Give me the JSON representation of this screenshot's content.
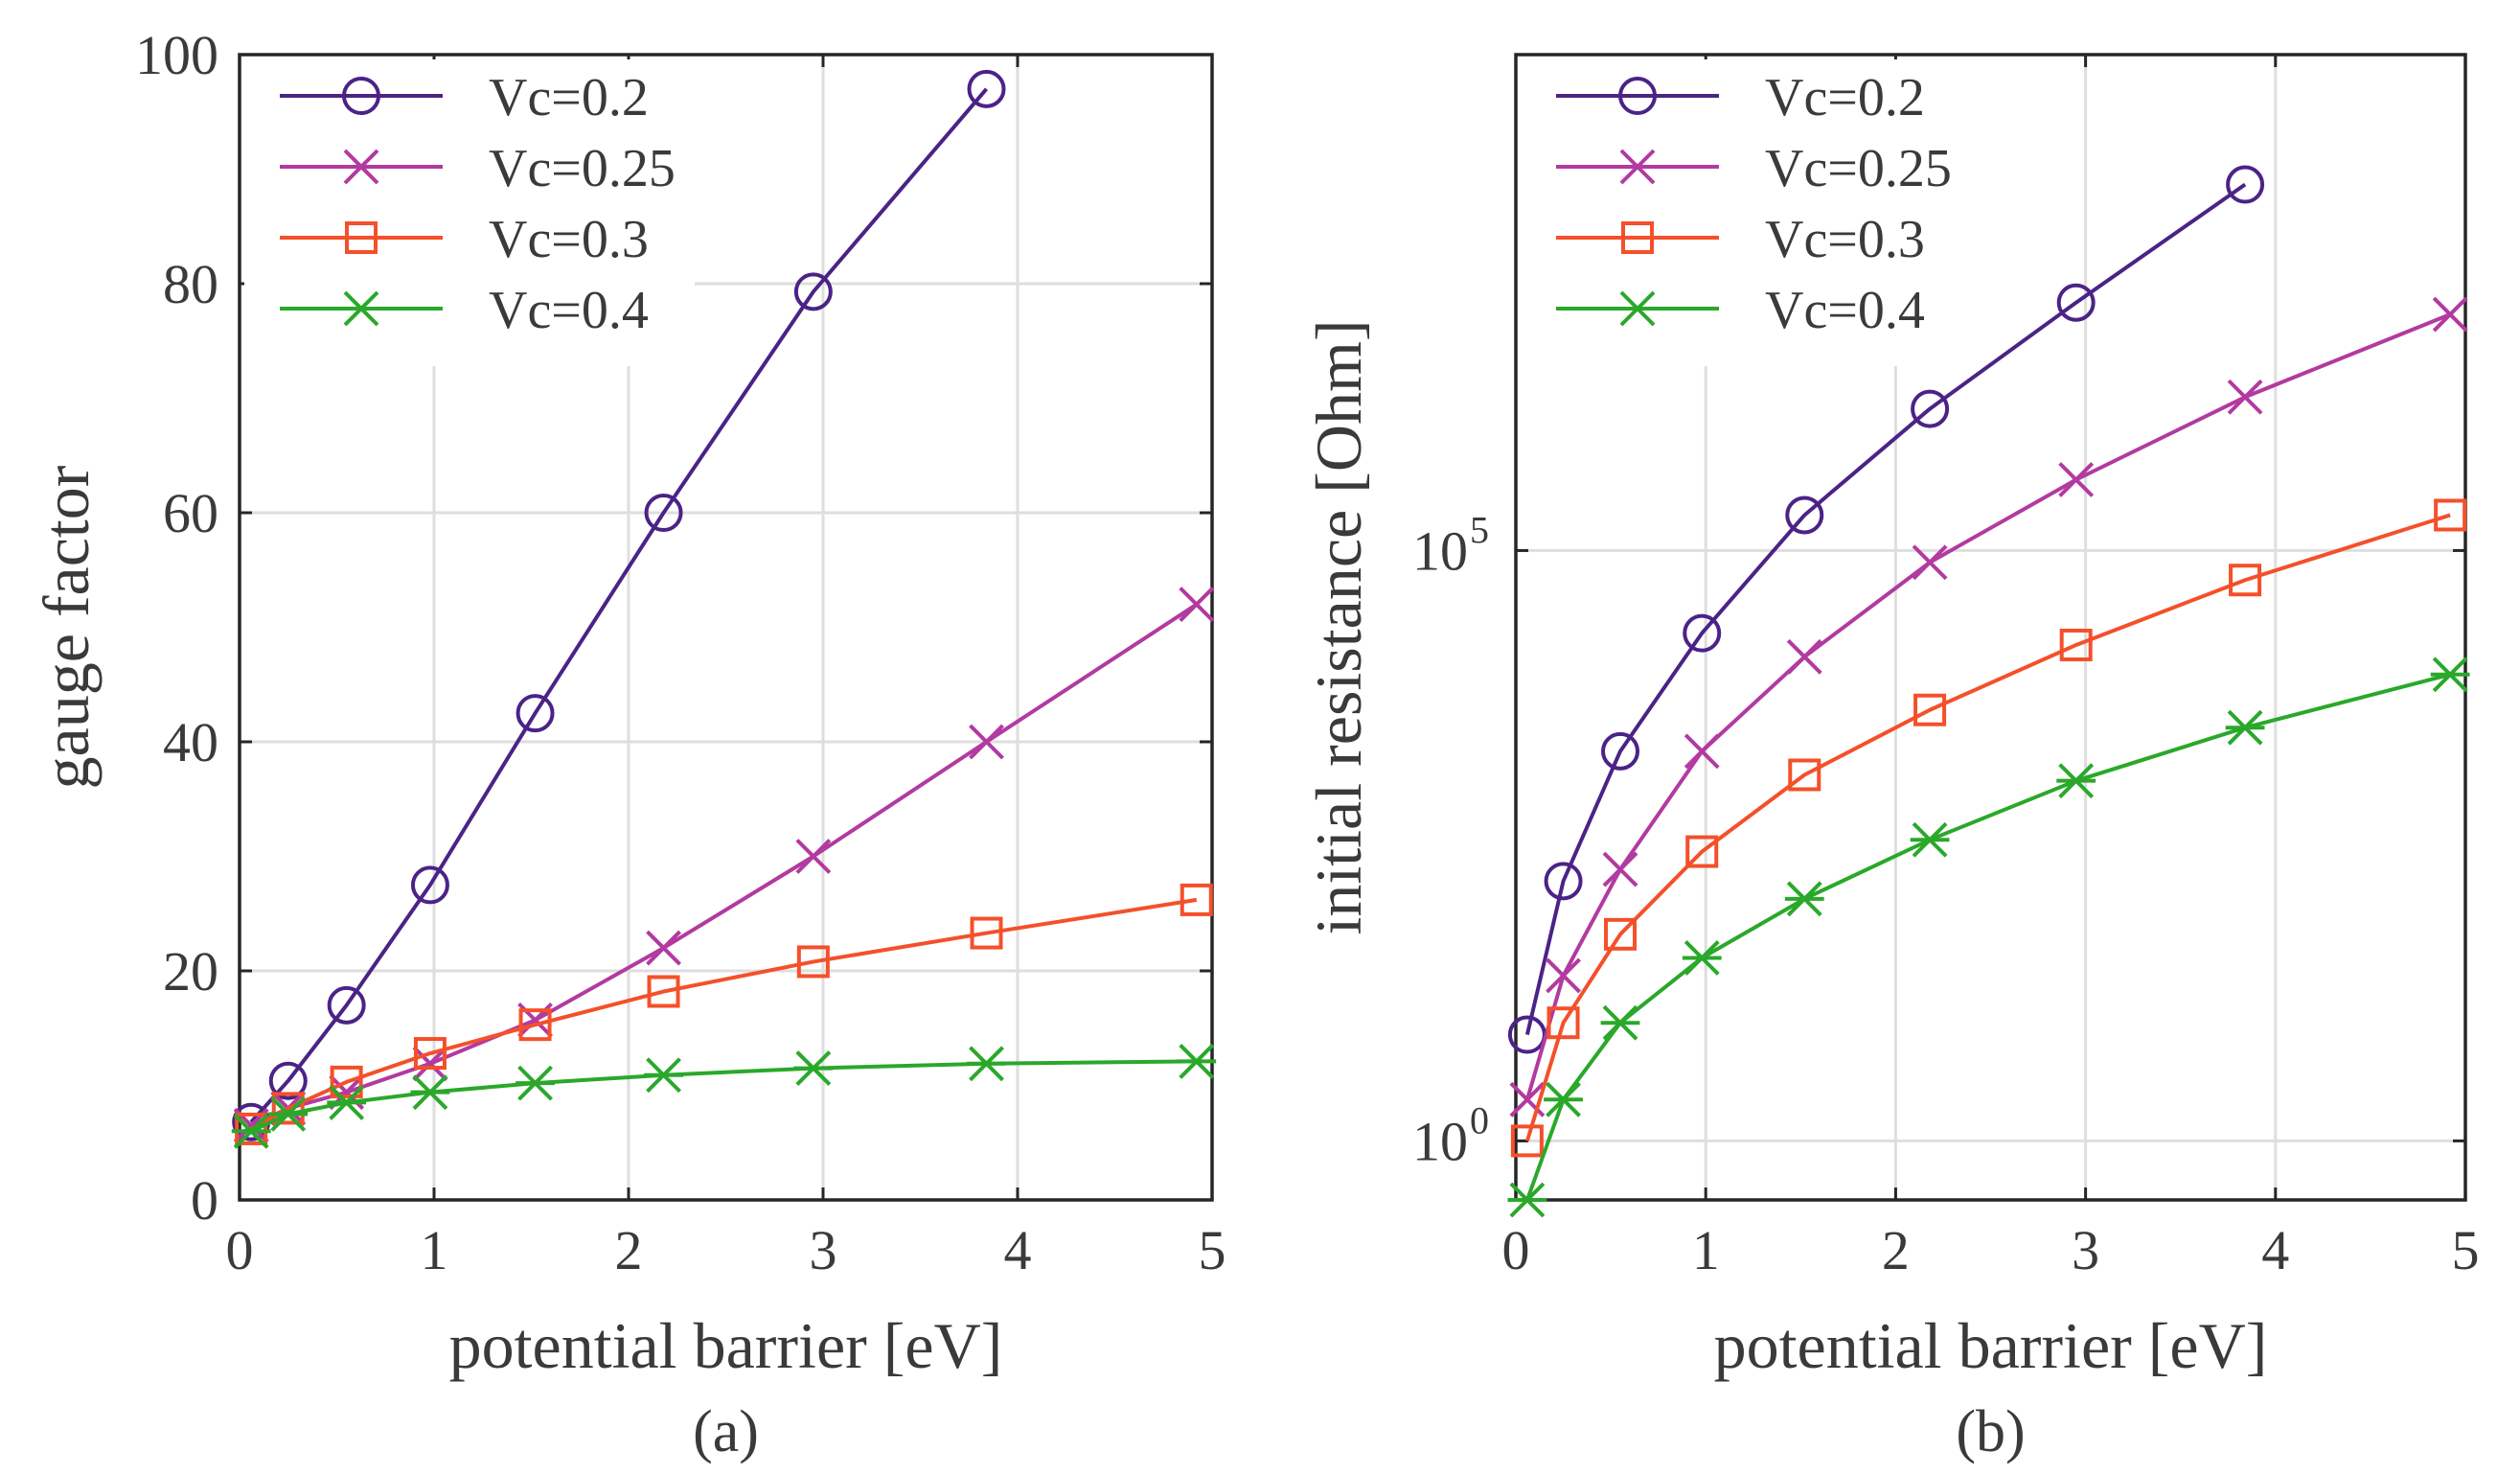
{
  "chart_data": [
    {
      "type": "line",
      "panel_label": "(a)",
      "xlabel": "potential barrier [eV]",
      "ylabel": "gauge factor",
      "xlim": [
        0,
        5
      ],
      "ylim": [
        0,
        100
      ],
      "yscale": "linear",
      "grid": true,
      "legend_position": "top-left",
      "x_ticks": [
        {
          "value": 0,
          "label": "0"
        },
        {
          "value": 1,
          "label": "1"
        },
        {
          "value": 2,
          "label": "2"
        },
        {
          "value": 3,
          "label": "3"
        },
        {
          "value": 4,
          "label": "4"
        },
        {
          "value": 5,
          "label": "5"
        }
      ],
      "y_ticks": [
        {
          "value": 0,
          "label": "0"
        },
        {
          "value": 20,
          "label": "20"
        },
        {
          "value": 40,
          "label": "40"
        },
        {
          "value": 60,
          "label": "60"
        },
        {
          "value": 80,
          "label": "80"
        },
        {
          "value": 100,
          "label": "100"
        }
      ],
      "series": [
        {
          "name": "Vc=0.2",
          "marker": "circle",
          "color": "#4b2387",
          "x": [
            0.06,
            0.25,
            0.55,
            0.98,
            1.52,
            2.18,
            2.95,
            3.84
          ],
          "y": [
            6.8,
            10.4,
            17.0,
            27.5,
            42.5,
            60.0,
            79.3,
            97.0
          ]
        },
        {
          "name": "Vc=0.25",
          "marker": "x",
          "color": "#b23aa0",
          "x": [
            0.06,
            0.25,
            0.55,
            0.98,
            1.52,
            2.18,
            2.95,
            3.84,
            4.92
          ],
          "y": [
            6.5,
            8.0,
            9.4,
            11.9,
            15.7,
            22.0,
            30.0,
            40.0,
            52.0
          ]
        },
        {
          "name": "Vc=0.3",
          "marker": "square",
          "color": "#f4502a",
          "x": [
            0.06,
            0.25,
            0.55,
            0.98,
            1.52,
            2.18,
            2.95,
            3.84,
            4.92
          ],
          "y": [
            6.2,
            8.0,
            10.3,
            12.8,
            15.3,
            18.2,
            20.8,
            23.3,
            26.2
          ]
        },
        {
          "name": "Vc=0.4",
          "marker": "asterisk",
          "color": "#2aa82a",
          "x": [
            0.06,
            0.25,
            0.55,
            0.98,
            1.52,
            2.18,
            2.95,
            3.84,
            4.92
          ],
          "y": [
            6.0,
            7.5,
            8.5,
            9.4,
            10.2,
            10.9,
            11.5,
            11.9,
            12.1
          ]
        }
      ]
    },
    {
      "type": "line",
      "panel_label": "(b)",
      "xlabel": "potential barrier [eV]",
      "ylabel": "initial resistance [Ohm]",
      "xlim": [
        0,
        5
      ],
      "ylim_log10": [
        -0.5,
        9.2
      ],
      "yscale": "log",
      "grid": true,
      "legend_position": "top-left",
      "x_ticks": [
        {
          "value": 0,
          "label": "0"
        },
        {
          "value": 1,
          "label": "1"
        },
        {
          "value": 2,
          "label": "2"
        },
        {
          "value": 3,
          "label": "3"
        },
        {
          "value": 4,
          "label": "4"
        },
        {
          "value": 5,
          "label": "5"
        }
      ],
      "y_ticks": [
        {
          "log10": 0,
          "base": "10",
          "exp": "0"
        },
        {
          "log10": 5,
          "base": "10",
          "exp": "5"
        }
      ],
      "series": [
        {
          "name": "Vc=0.2",
          "marker": "circle",
          "color": "#4b2387",
          "x": [
            0.06,
            0.25,
            0.55,
            0.98,
            1.52,
            2.18,
            2.95,
            3.84
          ],
          "log10_y": [
            0.9,
            2.2,
            3.3,
            4.3,
            5.3,
            6.2,
            7.1,
            8.1
          ]
        },
        {
          "name": "Vc=0.25",
          "marker": "x",
          "color": "#b23aa0",
          "x": [
            0.06,
            0.25,
            0.55,
            0.98,
            1.52,
            2.18,
            2.95,
            3.84,
            4.92
          ],
          "log10_y": [
            0.35,
            1.4,
            2.3,
            3.3,
            4.1,
            4.9,
            5.6,
            6.3,
            7.0
          ]
        },
        {
          "name": "Vc=0.3",
          "marker": "square",
          "color": "#f4502a",
          "x": [
            0.06,
            0.25,
            0.55,
            0.98,
            1.52,
            2.18,
            2.95,
            3.84,
            4.92
          ],
          "log10_y": [
            0.0,
            1.0,
            1.75,
            2.45,
            3.1,
            3.65,
            4.2,
            4.75,
            5.3
          ]
        },
        {
          "name": "Vc=0.4",
          "marker": "asterisk",
          "color": "#2aa82a",
          "x": [
            0.06,
            0.25,
            0.55,
            0.98,
            1.52,
            2.18,
            2.95,
            3.84,
            4.92
          ],
          "log10_y": [
            -0.5,
            0.35,
            1.0,
            1.55,
            2.05,
            2.55,
            3.05,
            3.5,
            3.95
          ]
        }
      ]
    }
  ]
}
